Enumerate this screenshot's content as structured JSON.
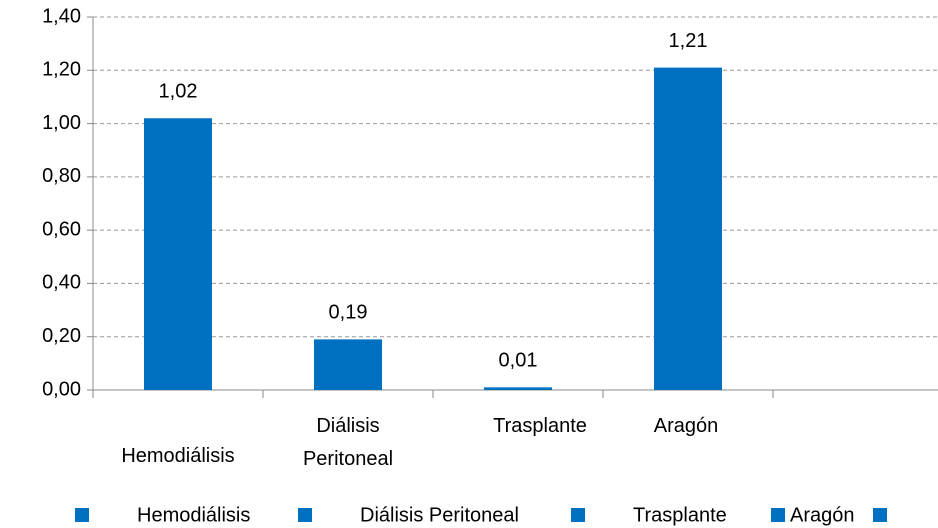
{
  "chart_data": {
    "type": "bar",
    "categories": [
      "Hemodiálisis",
      "Diálisis Peritoneal",
      "Trasplante",
      "Aragón",
      null
    ],
    "values": [
      1.02,
      0.19,
      0.01,
      1.21,
      null
    ],
    "value_labels": [
      "1,02",
      "0,19",
      "0,01",
      "1,21",
      null
    ],
    "color": "#0070c0",
    "ylim": [
      0,
      1.4
    ],
    "yticks": [
      {
        "value": 0,
        "label": "0,00"
      },
      {
        "value": 0.2,
        "label": "0,20"
      },
      {
        "value": 0.4,
        "label": "0,40"
      },
      {
        "value": 0.6,
        "label": "0,60"
      },
      {
        "value": 0.8,
        "label": "0,80"
      },
      {
        "value": 1.0,
        "label": "1,00"
      },
      {
        "value": 1.2,
        "label": "1,20"
      },
      {
        "value": 1.4,
        "label": "1,40"
      }
    ],
    "grid": true,
    "legend": "bottom"
  }
}
